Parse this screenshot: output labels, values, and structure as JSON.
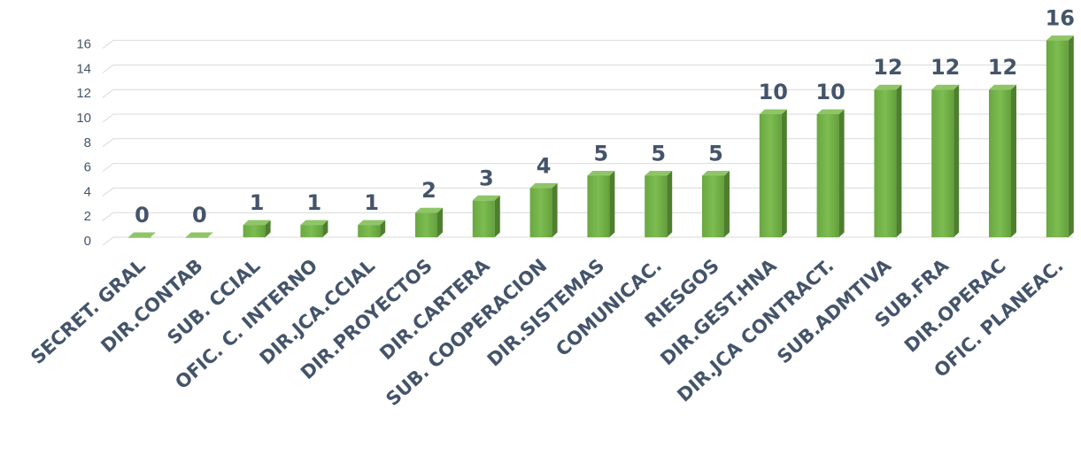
{
  "chart_data": {
    "type": "bar",
    "title": "",
    "xlabel": "",
    "ylabel": "",
    "ylim": [
      0,
      16
    ],
    "yticks": [
      0,
      2,
      4,
      6,
      8,
      10,
      12,
      14,
      16
    ],
    "grid": true,
    "legend": "none",
    "categories": [
      "SECRET. GRAL",
      "DIR.CONTAB",
      "SUB. CCIAL",
      "OFIC. C. INTERNO",
      "DIR.JCA.CCIAL",
      "DIR.PROYECTOS",
      "DIR.CARTERA",
      "SUB. COOPERACION",
      "DIR.SISTEMAS",
      "COMUNICAC.",
      "RIESGOS",
      "DIR.GEST.HNA",
      "DIR.JCA CONTRACT.",
      "SUB.ADMTIVA",
      "SUB.FRA",
      "DIR.OPERAC",
      "OFIC. PLANEAC."
    ],
    "values": [
      0,
      0,
      1,
      1,
      1,
      2,
      3,
      4,
      5,
      5,
      5,
      10,
      10,
      12,
      12,
      12,
      16
    ],
    "colors": {
      "bar_front": "#70ad47",
      "bar_side": "#4e7f2f",
      "bar_top": "#8fc566",
      "grid": "#d9d9d9",
      "text": "#44546a"
    }
  }
}
